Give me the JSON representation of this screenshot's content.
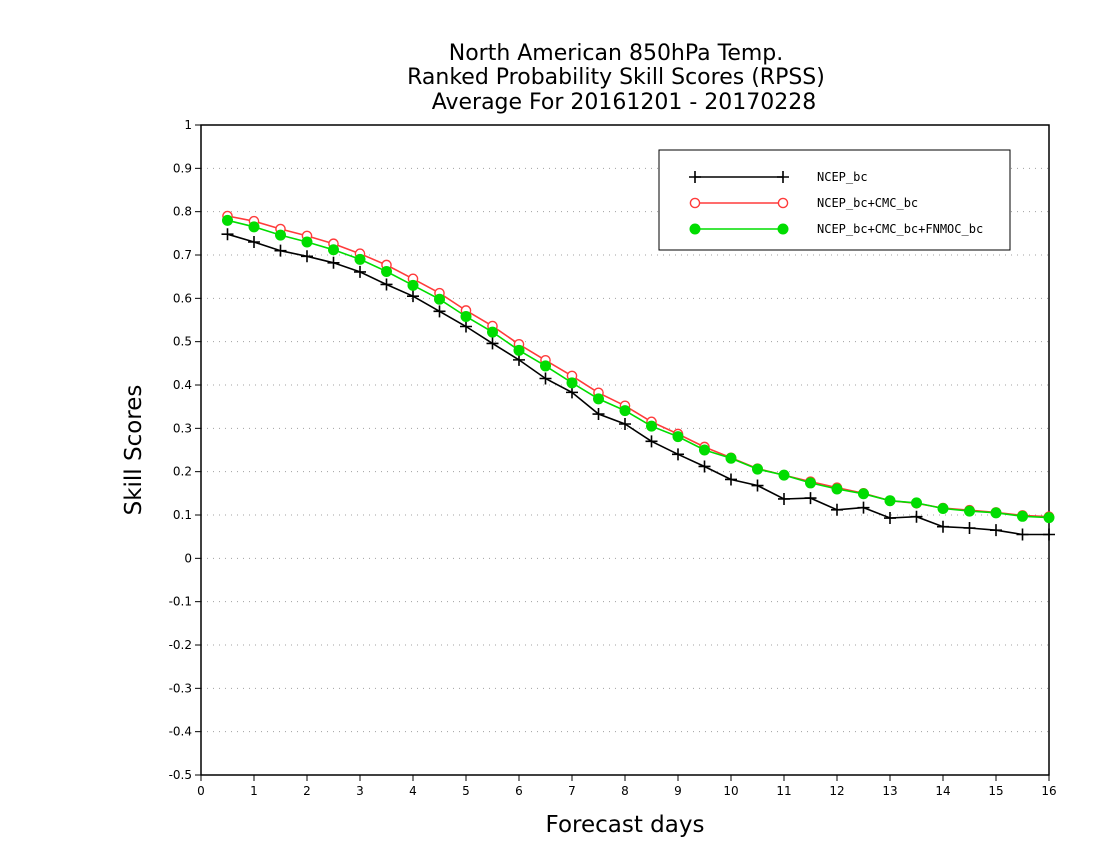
{
  "chart_data": {
    "type": "line",
    "title": [
      "North American 850hPa Temp.",
      "Ranked Probability Skill Scores (RPSS)",
      "Average For 20161201 - 20170228"
    ],
    "xlabel": "Forecast days",
    "ylabel": "Skill Scores",
    "xlim": [
      0,
      16
    ],
    "ylim": [
      -0.5,
      1
    ],
    "xticks": [
      "0",
      "1",
      "2",
      "3",
      "4",
      "5",
      "6",
      "7",
      "8",
      "9",
      "10",
      "11",
      "12",
      "13",
      "14",
      "15",
      "16"
    ],
    "yticks": [
      "-0.5",
      "-0.4",
      "-0.3",
      "-0.2",
      "-0.1",
      "0",
      "0.1",
      "0.2",
      "0.3",
      "0.4",
      "0.5",
      "0.6",
      "0.7",
      "0.8",
      "0.9",
      "1"
    ],
    "grid": "horizontal dotted",
    "legend_position": "top-right",
    "x": [
      0.5,
      1,
      1.5,
      2,
      2.5,
      3,
      3.5,
      4,
      4.5,
      5,
      5.5,
      6,
      6.5,
      7,
      7.5,
      8,
      8.5,
      9,
      9.5,
      10,
      10.5,
      11,
      11.5,
      12,
      12.5,
      13,
      13.5,
      14,
      14.5,
      15,
      15.5,
      16
    ],
    "series": [
      {
        "name": "NCEP_bc",
        "color": "#000000",
        "marker": "plus",
        "values": [
          0.748,
          0.73,
          0.71,
          0.697,
          0.682,
          0.661,
          0.632,
          0.605,
          0.57,
          0.535,
          0.496,
          0.458,
          0.415,
          0.383,
          0.333,
          0.31,
          0.27,
          0.24,
          0.212,
          0.182,
          0.168,
          0.137,
          0.139,
          0.112,
          0.117,
          0.093,
          0.096,
          0.073,
          0.07,
          0.065,
          0.055,
          0.055
        ]
      },
      {
        "name": "NCEP_bc+CMC_bc",
        "color": "#ff3b3b",
        "marker": "open-circle",
        "values": [
          0.79,
          0.778,
          0.76,
          0.744,
          0.726,
          0.703,
          0.677,
          0.645,
          0.612,
          0.572,
          0.536,
          0.494,
          0.457,
          0.421,
          0.382,
          0.352,
          0.315,
          0.287,
          0.257,
          0.232,
          0.207,
          0.192,
          0.177,
          0.163,
          0.15,
          0.133,
          0.127,
          0.116,
          0.111,
          0.106,
          0.099,
          0.096
        ]
      },
      {
        "name": "NCEP_bc+CMC_bc+FNMOC_bc",
        "color": "#00dd00",
        "marker": "filled-circle",
        "values": [
          0.78,
          0.765,
          0.746,
          0.73,
          0.712,
          0.69,
          0.662,
          0.63,
          0.598,
          0.558,
          0.522,
          0.48,
          0.444,
          0.405,
          0.368,
          0.341,
          0.305,
          0.281,
          0.25,
          0.231,
          0.206,
          0.192,
          0.174,
          0.16,
          0.149,
          0.133,
          0.128,
          0.115,
          0.109,
          0.105,
          0.097,
          0.094
        ]
      }
    ]
  }
}
